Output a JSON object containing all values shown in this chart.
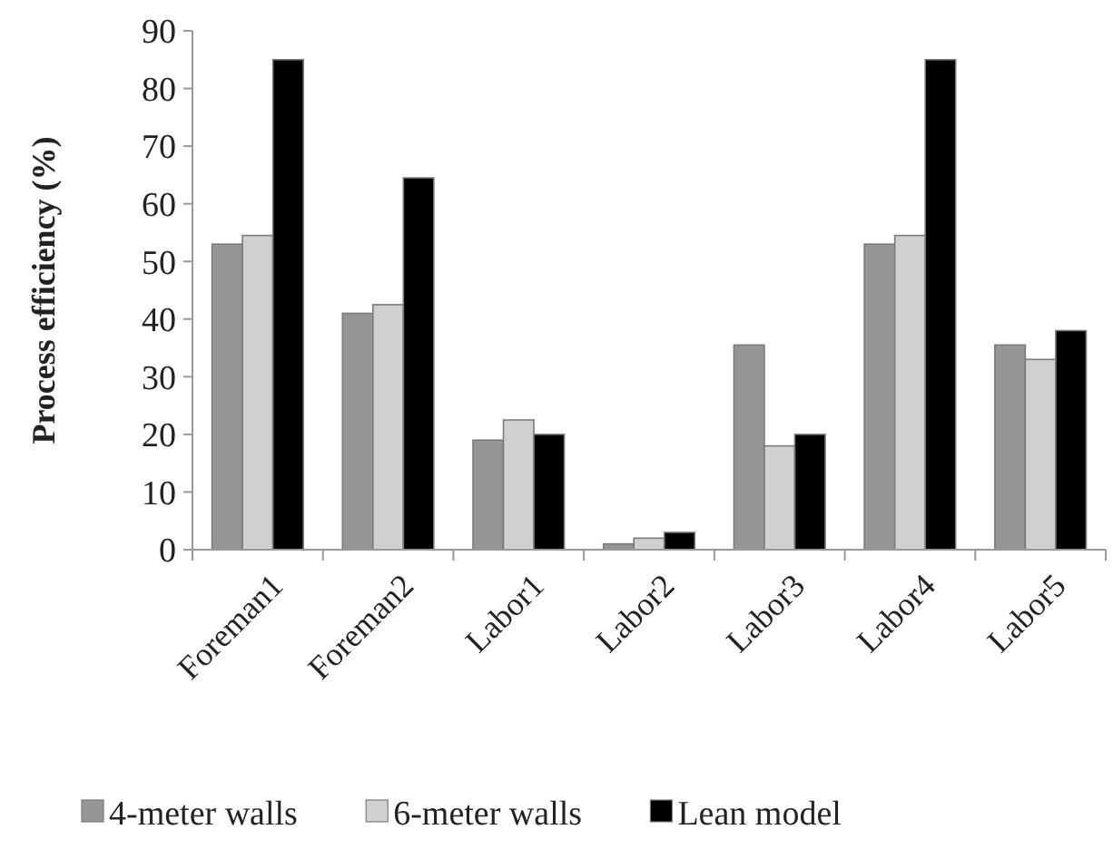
{
  "chart_data": {
    "type": "bar",
    "ylabel": "Process efficiency (%)",
    "categories": [
      "Foreman1",
      "Foreman2",
      "Labor1",
      "Labor2",
      "Labor3",
      "Labor4",
      "Labor5"
    ],
    "series": [
      {
        "name": "4-meter walls",
        "color": "#969696",
        "values": [
          53,
          41,
          19,
          1,
          35.5,
          53,
          35.5
        ]
      },
      {
        "name": "6-meter walls",
        "color": "#d0d0d0",
        "values": [
          54.5,
          42.5,
          22.5,
          2,
          18,
          54.5,
          33
        ]
      },
      {
        "name": "Lean model",
        "color": "#000000",
        "values": [
          85,
          64.5,
          20,
          3,
          20,
          85,
          38
        ]
      }
    ],
    "ylim": [
      0,
      90
    ],
    "yticks": [
      0,
      10,
      20,
      30,
      40,
      50,
      60,
      70,
      80,
      90
    ],
    "grid": false,
    "legend": "bottom"
  }
}
